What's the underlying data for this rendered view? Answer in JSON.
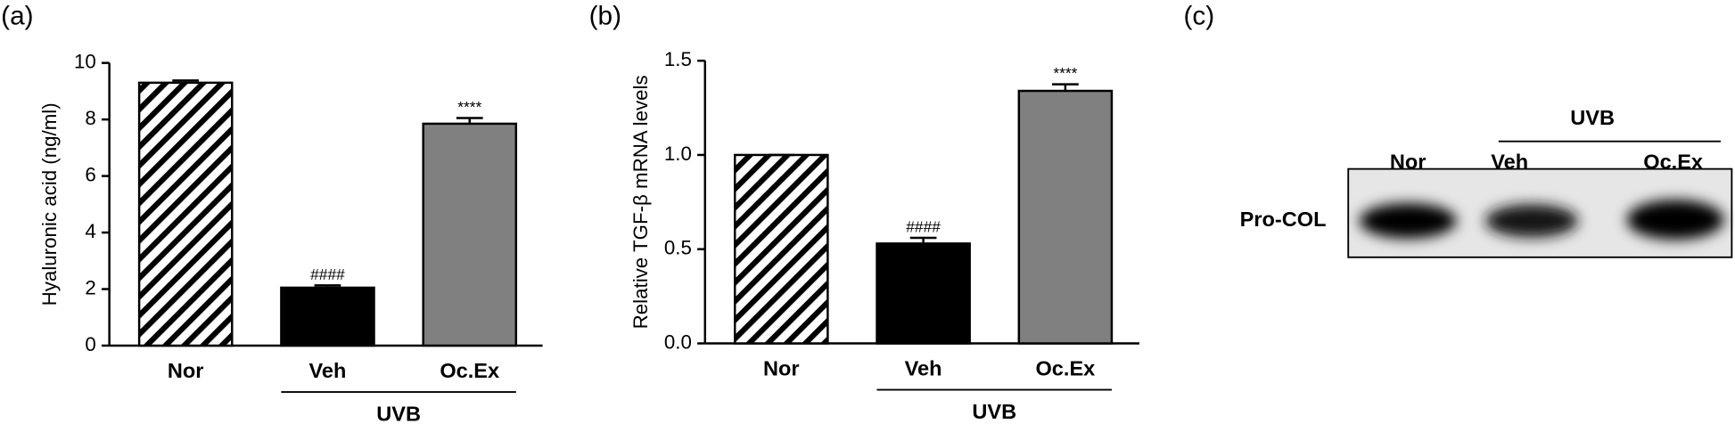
{
  "panel_labels": [
    "(a)",
    "(b)",
    "(c)"
  ],
  "chart_data": [
    {
      "type": "bar",
      "ylabel": "Hyaluronic acid (ng/ml)",
      "categories": [
        "Nor",
        "Veh",
        "Oc.Ex"
      ],
      "values": [
        9.3,
        2.05,
        7.85
      ],
      "errors": [
        0.08,
        0.08,
        0.2
      ],
      "colors": [
        "#ffffff",
        "#000000",
        "#808080"
      ],
      "hatched": [
        true,
        false,
        false
      ],
      "annotations": [
        {
          "category": "Veh",
          "text": "####"
        },
        {
          "category": "Oc.Ex",
          "text": "****"
        }
      ],
      "group": {
        "label": "UVB",
        "categories": [
          "Veh",
          "Oc.Ex"
        ]
      },
      "ylim": [
        0,
        10
      ],
      "yticks": [
        0,
        2,
        4,
        6,
        8,
        10
      ]
    },
    {
      "type": "bar",
      "ylabel": "Relative TGF-β mRNA levels",
      "categories": [
        "Nor",
        "Veh",
        "Oc.Ex"
      ],
      "values": [
        1.0,
        0.53,
        1.34
      ],
      "errors": [
        0,
        0.03,
        0.035
      ],
      "colors": [
        "#ffffff",
        "#000000",
        "#808080"
      ],
      "hatched": [
        true,
        false,
        false
      ],
      "annotations": [
        {
          "category": "Veh",
          "text": "####"
        },
        {
          "category": "Oc.Ex",
          "text": "****"
        }
      ],
      "group": {
        "label": "UVB",
        "categories": [
          "Veh",
          "Oc.Ex"
        ]
      },
      "ylim": [
        0,
        1.5
      ],
      "yticks": [
        {
          "value": 0,
          "label": "0.0"
        },
        0.5,
        {
          "value": 1,
          "label": "1.0"
        },
        1.5
      ]
    }
  ],
  "blot": {
    "group_label": "UVB",
    "lanes": [
      "Nor",
      "Veh",
      "Oc.Ex"
    ],
    "row_label": "Pro-COL"
  }
}
